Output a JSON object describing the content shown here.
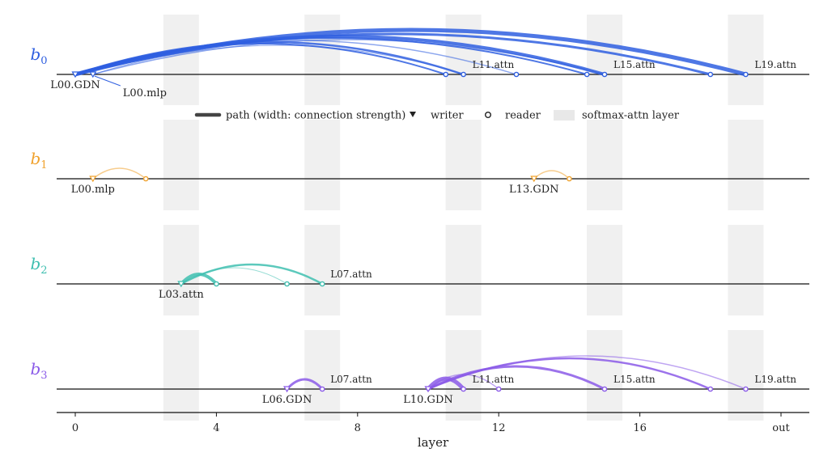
{
  "x_axis": {
    "label": "layer",
    "ticks": [
      {
        "value": 0,
        "label": "0"
      },
      {
        "value": 4,
        "label": "4"
      },
      {
        "value": 8,
        "label": "8"
      },
      {
        "value": 12,
        "label": "12"
      },
      {
        "value": 16,
        "label": "16"
      },
      {
        "value": 20,
        "label": "out"
      }
    ],
    "min": -0.5,
    "max": 20.8
  },
  "softmax_layers": [
    3,
    7,
    11,
    15,
    19
  ],
  "legend": {
    "path_label": "path (width: connection strength)",
    "writer_label": "writer",
    "reader_label": "reader",
    "softmax_label": "softmax-attn layer"
  },
  "rows": [
    {
      "name": "b",
      "sub": "0",
      "color": "#2f5fe0",
      "labels": [
        {
          "text": "L00.GDN",
          "layer": 0,
          "pos": "below"
        },
        {
          "text": "L00.mlp",
          "layer": 0.5,
          "pos": "below-right"
        },
        {
          "text": "L11.attn",
          "layer": 11,
          "pos": "above"
        },
        {
          "text": "L15.attn",
          "layer": 15,
          "pos": "above"
        },
        {
          "text": "L19.attn",
          "layer": 19,
          "pos": "above"
        }
      ],
      "writers": [
        0,
        0.5
      ],
      "readers": [
        10.5,
        11,
        12.5,
        14.5,
        15,
        18,
        19
      ],
      "arcs": [
        {
          "from": 0,
          "to": 19,
          "h": 55,
          "w": 5
        },
        {
          "from": 0,
          "to": 15,
          "h": 47,
          "w": 4
        },
        {
          "from": 0,
          "to": 14.5,
          "h": 45,
          "w": 2
        },
        {
          "from": 0,
          "to": 18,
          "h": 50,
          "w": 3
        },
        {
          "from": 0,
          "to": 11,
          "h": 40,
          "w": 2.5
        },
        {
          "from": 0,
          "to": 10.5,
          "h": 38,
          "w": 2
        },
        {
          "from": 0,
          "to": 12.5,
          "h": 42,
          "w": 1.5
        },
        {
          "from": 0.5,
          "to": 15,
          "h": 43,
          "w": 1.5
        },
        {
          "from": 0.5,
          "to": 11,
          "h": 36,
          "w": 1
        }
      ]
    },
    {
      "name": "b",
      "sub": "1",
      "color": "#f0a22e",
      "labels": [
        {
          "text": "L00.mlp",
          "layer": 0.5,
          "pos": "below"
        },
        {
          "text": "L13.GDN",
          "layer": 13,
          "pos": "below"
        }
      ],
      "writers": [
        0.5,
        13
      ],
      "readers": [
        2,
        14
      ],
      "arcs": [
        {
          "from": 0.5,
          "to": 2,
          "h": 13,
          "w": 1.5
        },
        {
          "from": 13,
          "to": 14,
          "h": 10,
          "w": 1.5
        }
      ]
    },
    {
      "name": "b",
      "sub": "2",
      "color": "#3fbfb0",
      "labels": [
        {
          "text": "L03.attn",
          "layer": 3,
          "pos": "below"
        },
        {
          "text": "L07.attn",
          "layer": 7,
          "pos": "above-right"
        }
      ],
      "writers": [
        3
      ],
      "readers": [
        4,
        6,
        7
      ],
      "arcs": [
        {
          "from": 3,
          "to": 4,
          "h": 12,
          "w": 4
        },
        {
          "from": 3,
          "to": 6,
          "h": 20,
          "w": 1
        },
        {
          "from": 3,
          "to": 7,
          "h": 24,
          "w": 2.5
        }
      ]
    },
    {
      "name": "b",
      "sub": "3",
      "color": "#8b5be8",
      "labels": [
        {
          "text": "L06.GDN",
          "layer": 6,
          "pos": "below"
        },
        {
          "text": "L07.attn",
          "layer": 7,
          "pos": "above-right"
        },
        {
          "text": "L10.GDN",
          "layer": 10,
          "pos": "below"
        },
        {
          "text": "L11.attn",
          "layer": 11,
          "pos": "above"
        },
        {
          "text": "L15.attn",
          "layer": 15,
          "pos": "above"
        },
        {
          "text": "L19.attn",
          "layer": 19,
          "pos": "above"
        }
      ],
      "writers": [
        6,
        10
      ],
      "readers": [
        7,
        11,
        12,
        15,
        18,
        19
      ],
      "arcs": [
        {
          "from": 6,
          "to": 7,
          "h": 12,
          "w": 3
        },
        {
          "from": 10,
          "to": 11,
          "h": 13,
          "w": 5
        },
        {
          "from": 10,
          "to": 12,
          "h": 18,
          "w": 1.5
        },
        {
          "from": 10,
          "to": 15,
          "h": 28,
          "w": 3
        },
        {
          "from": 10,
          "to": 18,
          "h": 38,
          "w": 2.5
        },
        {
          "from": 10,
          "to": 19,
          "h": 41,
          "w": 1.5
        }
      ]
    }
  ]
}
